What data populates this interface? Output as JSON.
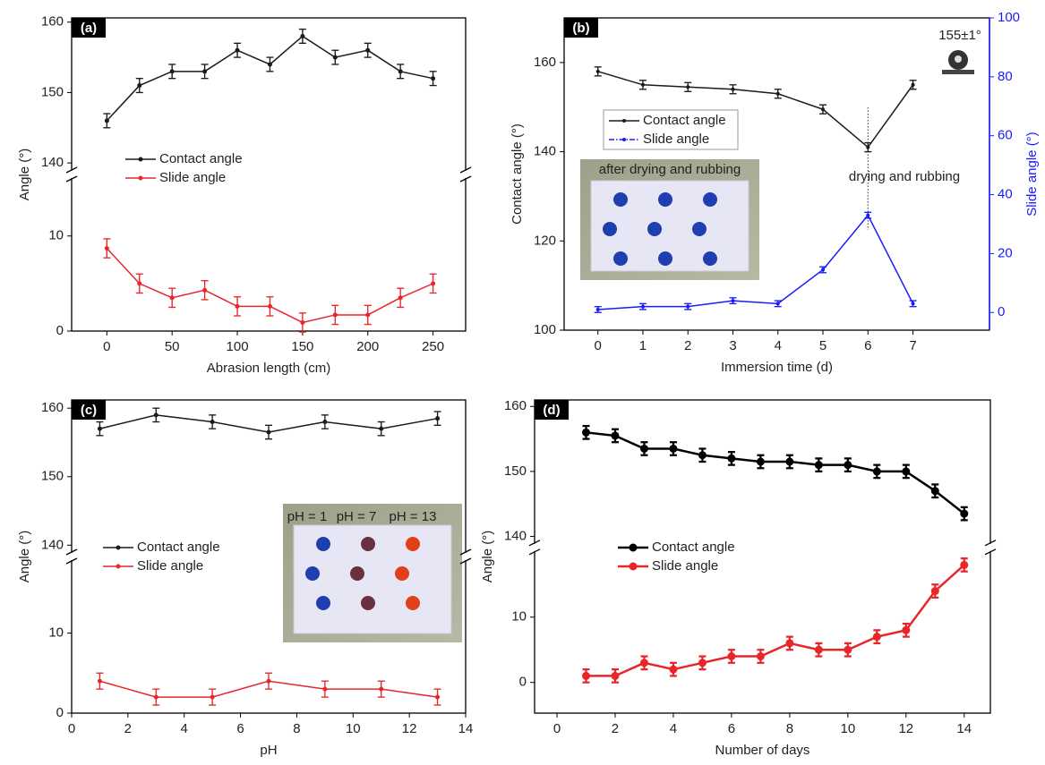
{
  "chart_data": [
    {
      "type": "line",
      "panel_label": "(a)",
      "xlabel": "Abrasion length (cm)",
      "ylabel": "Angle (°)",
      "x": [
        0,
        25,
        50,
        75,
        100,
        125,
        150,
        175,
        200,
        225,
        250
      ],
      "xlim": [
        -27,
        275
      ],
      "xticks": [
        0,
        50,
        100,
        150,
        200,
        250
      ],
      "y_segments": [
        {
          "ylim": [
            0,
            16
          ],
          "yticks": [
            0,
            10
          ]
        },
        {
          "ylim": [
            139,
            160.6
          ],
          "yticks": [
            140,
            150,
            160
          ]
        }
      ],
      "series": [
        {
          "name": "Contact angle",
          "color": "#1a1a1a",
          "values": [
            146,
            151,
            153,
            153,
            156,
            154,
            158,
            155,
            156,
            153,
            152
          ],
          "errors": [
            1,
            1,
            1,
            1,
            1,
            1,
            1,
            1,
            1,
            1,
            1
          ]
        },
        {
          "name": "Slide angle",
          "color": "#e8262a",
          "values": [
            8.7,
            5,
            3.5,
            4.3,
            2.6,
            2.6,
            0.9,
            1.7,
            1.7,
            3.5,
            5
          ],
          "errors": [
            1,
            1,
            1,
            1,
            1,
            1,
            1,
            1,
            1,
            1,
            1
          ]
        }
      ]
    },
    {
      "type": "line",
      "panel_label": "(b)",
      "xlabel": "Immersion time (d)",
      "ylabel": "Contact angle (°)",
      "y2label": "Slide angle (°)",
      "x": [
        0,
        1,
        2,
        3,
        4,
        5,
        6,
        7
      ],
      "xlim": [
        -0.75,
        8.7
      ],
      "xticks": [
        0,
        1,
        2,
        3,
        4,
        5,
        6,
        7
      ],
      "ylim": [
        100,
        170
      ],
      "yticks": [
        100,
        120,
        140,
        160
      ],
      "y2lim": [
        -6,
        100
      ],
      "y2ticks": [
        0,
        20,
        40,
        60,
        80,
        100
      ],
      "y2color": "#1a1aff",
      "annotations": [
        "155±1°",
        "drying and rubbing"
      ],
      "inset_caption": "after drying and rubbing",
      "series": [
        {
          "name": "Contact angle",
          "color": "#1a1a1a",
          "values": [
            158,
            155,
            154.5,
            154,
            153,
            149.5,
            141,
            155
          ],
          "errors": [
            1,
            1,
            1,
            1,
            1,
            1,
            1,
            1
          ]
        },
        {
          "name": "Slide angle",
          "color": "#1a1aff",
          "axis": "y2",
          "values": [
            1,
            2,
            2,
            4,
            3,
            14.5,
            33,
            3
          ],
          "errors": [
            1,
            1,
            1,
            1,
            1,
            1,
            1,
            1
          ]
        }
      ]
    },
    {
      "type": "line",
      "panel_label": "(c)",
      "xlabel": "pH",
      "ylabel": "Angle (°)",
      "x": [
        1,
        3,
        5,
        7,
        9,
        11,
        13
      ],
      "xlim": [
        0,
        14
      ],
      "xticks": [
        0,
        2,
        4,
        6,
        8,
        10,
        12,
        14
      ],
      "y_segments": [
        {
          "ylim": [
            0,
            19
          ],
          "yticks": [
            0,
            10
          ]
        },
        {
          "ylim": [
            139,
            161.2
          ],
          "yticks": [
            140,
            150,
            160
          ]
        }
      ],
      "inset_caption": [
        "pH = 1",
        "pH = 7",
        "pH = 13"
      ],
      "series": [
        {
          "name": "Contact angle",
          "color": "#1a1a1a",
          "values": [
            157,
            159,
            158,
            156.5,
            158,
            157,
            158.5
          ],
          "errors": [
            1,
            1,
            1,
            1,
            1,
            1,
            1
          ]
        },
        {
          "name": "Slide angle",
          "color": "#e8262a",
          "values": [
            4,
            2,
            2,
            4,
            3,
            3,
            2
          ],
          "errors": [
            1,
            1,
            1,
            1,
            1,
            1,
            1
          ]
        }
      ]
    },
    {
      "type": "line",
      "panel_label": "(d)",
      "xlabel": "Number of days",
      "ylabel": "Angle (°)",
      "x": [
        1,
        2,
        3,
        4,
        5,
        6,
        7,
        8,
        9,
        10,
        11,
        12,
        13,
        14
      ],
      "xlim": [
        -0.77,
        14.9
      ],
      "xticks": [
        0,
        2,
        4,
        6,
        8,
        10,
        12,
        14
      ],
      "y_segments": [
        {
          "ylim": [
            -4.7,
            20
          ],
          "yticks": [
            0,
            10
          ]
        },
        {
          "ylim": [
            139,
            161
          ],
          "yticks": [
            140,
            150,
            160
          ]
        }
      ],
      "series": [
        {
          "name": "Contact angle",
          "color": "#000000",
          "values": [
            156,
            155.5,
            153.5,
            153.5,
            152.5,
            152,
            151.5,
            151.5,
            151,
            151,
            150,
            150,
            147,
            143.5
          ],
          "errors": [
            1,
            1,
            1,
            1,
            1,
            1,
            1,
            1,
            1,
            1,
            1,
            1,
            1,
            1
          ]
        },
        {
          "name": "Slide angle",
          "color": "#e8262a",
          "values": [
            1,
            1,
            3,
            2,
            3,
            4,
            4,
            6,
            5,
            5,
            7,
            8,
            14,
            18
          ],
          "errors": [
            1,
            1,
            1,
            1,
            1,
            1,
            1,
            1,
            1,
            1,
            1,
            1,
            1,
            1
          ]
        }
      ]
    }
  ]
}
